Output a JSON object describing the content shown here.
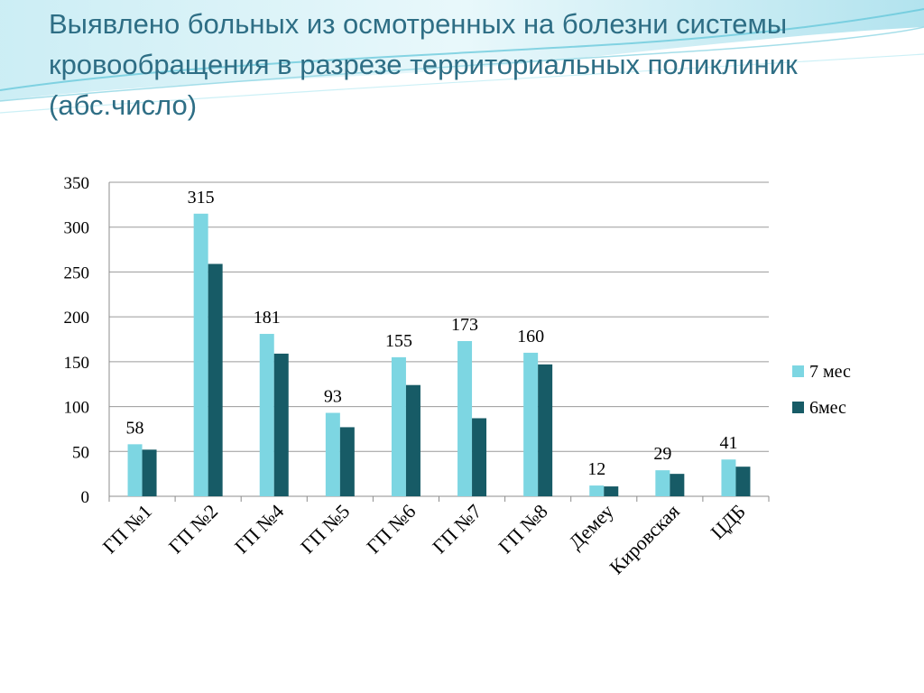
{
  "slide": {
    "title": "Выявлено больных  из осмотренных на болезни системы кровообращения в разрезе территориальных поликлиник (абс.число)"
  },
  "colors": {
    "series1": "#7dd6e2",
    "series2": "#175b66",
    "title": "#2e6e85"
  },
  "chart_data": {
    "type": "bar",
    "title": "",
    "xlabel": "",
    "ylabel": "",
    "categories": [
      "ГП №1",
      "ГП №2",
      "ГП №4",
      "ГП №5",
      "ГП №6",
      "ГП  №7",
      "ГП №8",
      "Демеу",
      "Кировская",
      "ЦДБ"
    ],
    "series": [
      {
        "name": "7 мес",
        "values": [
          58,
          315,
          181,
          93,
          155,
          173,
          160,
          12,
          29,
          41
        ],
        "color": "#7dd6e2",
        "labeled": true
      },
      {
        "name": "6мес",
        "values": [
          52,
          259,
          159,
          77,
          124,
          87,
          147,
          11,
          25,
          33
        ],
        "color": "#175b66",
        "labeled": false
      }
    ],
    "ylim": [
      0,
      350
    ],
    "yticks": [
      0,
      50,
      100,
      150,
      200,
      250,
      300,
      350
    ],
    "grid": true,
    "legend": "right"
  }
}
